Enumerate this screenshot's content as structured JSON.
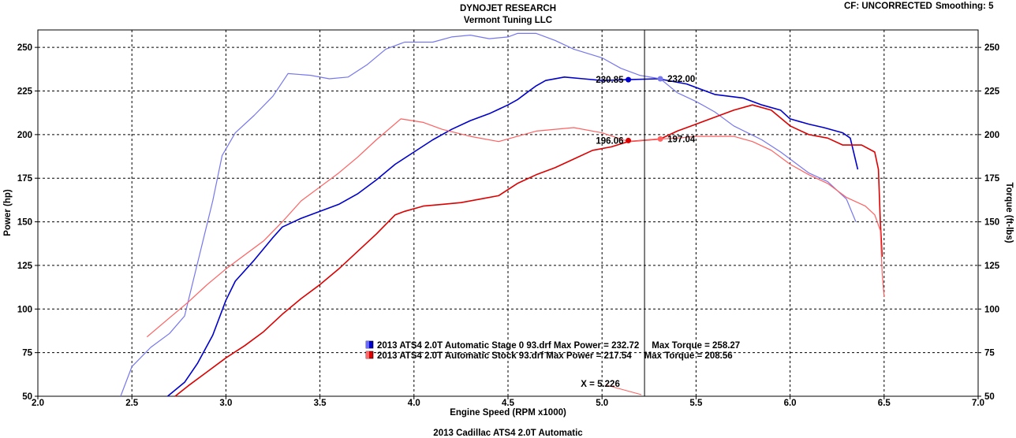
{
  "header": {
    "title": "DYNOJET RESEARCH",
    "subtitle": "Vermont Tuning LLC",
    "cf_label": "CF: UNCORRECTED",
    "smoothing_label": "Smoothing: 5"
  },
  "footer": {
    "caption": "2013 Cadillac ATS4 2.0T Automatic"
  },
  "colors": {
    "stage0_power": "#0000cc",
    "stage0_torque": "#7777ee",
    "stock_power": "#dd0000",
    "stock_torque": "#ff6060",
    "grid": "#000000",
    "cursor": "#000000"
  },
  "chart_data": {
    "type": "line",
    "xlabel": "Engine Speed (RPM x1000)",
    "ylabel_left": "Power (hp)",
    "ylabel_right": "Torque (ft-lbs)",
    "xlim": [
      2.0,
      7.0
    ],
    "ylim_left": [
      50,
      260
    ],
    "ylim_right": [
      50,
      260
    ],
    "x_ticks": [
      "2.0",
      "2.5",
      "3.0",
      "3.5",
      "4.0",
      "4.5",
      "5.0",
      "5.5",
      "6.0",
      "6.5",
      "7.0"
    ],
    "y_ticks": [
      "50",
      "75",
      "100",
      "125",
      "150",
      "175",
      "200",
      "225",
      "250"
    ],
    "grid": true,
    "cursor": {
      "x": 5.226,
      "label": "X = 5.226"
    },
    "legend": [
      {
        "swatch": "blue",
        "text": "2013 ATS4 2.0T Automatic Stage 0 93.drf Max Power = 232.72     Max Torque = 258.27"
      },
      {
        "swatch": "red",
        "text": "2013 ATS4 2.0T Automatic Stock 93.drf Max Power = 217.54     Max Torque = 208.56"
      }
    ],
    "cursor_readouts": [
      {
        "series": "stage0_power",
        "x": 5.14,
        "y": 231.5,
        "label": "230.85",
        "side": "left"
      },
      {
        "series": "stage0_torque",
        "x": 5.31,
        "y": 232.0,
        "label": "232.00",
        "side": "right"
      },
      {
        "series": "stock_power",
        "x": 5.14,
        "y": 196.6,
        "label": "196.06",
        "side": "left"
      },
      {
        "series": "stock_torque",
        "x": 5.31,
        "y": 197.5,
        "label": "197.04",
        "side": "right"
      }
    ],
    "series": [
      {
        "name": "2013 ATS4 2.0T Automatic Stage 0 93.drf Max Power = 232.72",
        "key": "stage0_power",
        "width": 1.6,
        "points": [
          [
            2.69,
            50
          ],
          [
            2.78,
            58
          ],
          [
            2.85,
            69
          ],
          [
            2.93,
            85
          ],
          [
            3.0,
            105
          ],
          [
            3.05,
            116
          ],
          [
            3.15,
            128
          ],
          [
            3.25,
            141
          ],
          [
            3.3,
            147
          ],
          [
            3.4,
            152
          ],
          [
            3.5,
            156
          ],
          [
            3.6,
            160
          ],
          [
            3.7,
            166
          ],
          [
            3.8,
            174
          ],
          [
            3.9,
            183
          ],
          [
            4.0,
            190
          ],
          [
            4.1,
            197
          ],
          [
            4.2,
            203
          ],
          [
            4.3,
            208
          ],
          [
            4.4,
            212
          ],
          [
            4.5,
            217
          ],
          [
            4.55,
            220
          ],
          [
            4.6,
            224
          ],
          [
            4.65,
            228
          ],
          [
            4.7,
            231
          ],
          [
            4.8,
            233
          ],
          [
            4.9,
            232
          ],
          [
            5.0,
            231
          ],
          [
            5.14,
            231.5
          ],
          [
            5.3,
            232
          ],
          [
            5.45,
            229
          ],
          [
            5.6,
            223
          ],
          [
            5.75,
            221
          ],
          [
            5.85,
            217
          ],
          [
            5.95,
            214
          ],
          [
            6.0,
            209
          ],
          [
            6.1,
            206
          ],
          [
            6.18,
            204
          ],
          [
            6.28,
            201
          ],
          [
            6.32,
            198
          ],
          [
            6.36,
            180
          ]
        ]
      },
      {
        "name": "2013 ATS4 2.0T Automatic Stage 0 93.drf Max Torque = 258.27",
        "key": "stage0_torque",
        "width": 1.2,
        "points": [
          [
            2.44,
            50
          ],
          [
            2.5,
            67
          ],
          [
            2.6,
            78
          ],
          [
            2.7,
            86
          ],
          [
            2.78,
            96
          ],
          [
            2.83,
            118
          ],
          [
            2.88,
            140
          ],
          [
            2.93,
            162
          ],
          [
            2.98,
            188
          ],
          [
            3.05,
            201
          ],
          [
            3.15,
            211
          ],
          [
            3.25,
            222
          ],
          [
            3.33,
            235
          ],
          [
            3.45,
            234
          ],
          [
            3.55,
            232
          ],
          [
            3.65,
            233
          ],
          [
            3.75,
            240
          ],
          [
            3.85,
            249
          ],
          [
            3.95,
            253
          ],
          [
            4.1,
            253
          ],
          [
            4.2,
            256
          ],
          [
            4.3,
            257
          ],
          [
            4.4,
            255
          ],
          [
            4.5,
            256
          ],
          [
            4.55,
            258
          ],
          [
            4.65,
            258
          ],
          [
            4.75,
            254
          ],
          [
            4.85,
            249
          ],
          [
            5.0,
            244
          ],
          [
            5.1,
            238
          ],
          [
            5.2,
            234
          ],
          [
            5.31,
            232
          ],
          [
            5.4,
            224
          ],
          [
            5.5,
            219
          ],
          [
            5.6,
            213
          ],
          [
            5.7,
            205
          ],
          [
            5.85,
            197
          ],
          [
            5.95,
            190
          ],
          [
            6.0,
            186
          ],
          [
            6.1,
            178
          ],
          [
            6.2,
            173
          ],
          [
            6.3,
            163
          ],
          [
            6.35,
            150
          ]
        ]
      },
      {
        "name": "2013 ATS4 2.0T Automatic Stock 93.drf Max Power = 217.54",
        "key": "stock_power",
        "width": 1.6,
        "points": [
          [
            2.73,
            50
          ],
          [
            2.8,
            56
          ],
          [
            2.9,
            64
          ],
          [
            3.0,
            72
          ],
          [
            3.1,
            79
          ],
          [
            3.2,
            87
          ],
          [
            3.3,
            97
          ],
          [
            3.4,
            106
          ],
          [
            3.5,
            114
          ],
          [
            3.6,
            123
          ],
          [
            3.7,
            133
          ],
          [
            3.8,
            143
          ],
          [
            3.9,
            154
          ],
          [
            3.95,
            156
          ],
          [
            4.05,
            159
          ],
          [
            4.15,
            160
          ],
          [
            4.25,
            161
          ],
          [
            4.35,
            163
          ],
          [
            4.45,
            165
          ],
          [
            4.55,
            172
          ],
          [
            4.65,
            177
          ],
          [
            4.75,
            181
          ],
          [
            4.85,
            186
          ],
          [
            4.95,
            191
          ],
          [
            5.05,
            193
          ],
          [
            5.14,
            196
          ],
          [
            5.31,
            197.5
          ],
          [
            5.4,
            202
          ],
          [
            5.5,
            206
          ],
          [
            5.6,
            210
          ],
          [
            5.7,
            214
          ],
          [
            5.8,
            217
          ],
          [
            5.9,
            214
          ],
          [
            6.0,
            205
          ],
          [
            6.1,
            200
          ],
          [
            6.2,
            198
          ],
          [
            6.28,
            194
          ],
          [
            6.38,
            194
          ],
          [
            6.45,
            190
          ],
          [
            6.47,
            180
          ],
          [
            6.48,
            150
          ],
          [
            6.49,
            130
          ]
        ]
      },
      {
        "name": "2013 ATS4 2.0T Automatic Stock 93.drf Max Torque = 208.56",
        "key": "stock_torque",
        "width": 1.2,
        "points": [
          [
            2.58,
            84
          ],
          [
            2.7,
            95
          ],
          [
            2.8,
            104
          ],
          [
            2.9,
            114
          ],
          [
            3.0,
            123
          ],
          [
            3.1,
            131
          ],
          [
            3.2,
            139
          ],
          [
            3.3,
            150
          ],
          [
            3.4,
            162
          ],
          [
            3.5,
            170
          ],
          [
            3.6,
            178
          ],
          [
            3.7,
            187
          ],
          [
            3.8,
            197
          ],
          [
            3.93,
            209
          ],
          [
            4.05,
            207
          ],
          [
            4.15,
            203
          ],
          [
            4.3,
            199
          ],
          [
            4.45,
            196
          ],
          [
            4.55,
            199
          ],
          [
            4.65,
            202
          ],
          [
            4.85,
            204
          ],
          [
            5.0,
            201
          ],
          [
            5.14,
            196
          ],
          [
            5.31,
            197.5
          ],
          [
            5.4,
            198
          ],
          [
            5.5,
            199
          ],
          [
            5.6,
            199
          ],
          [
            5.7,
            199
          ],
          [
            5.8,
            196
          ],
          [
            5.9,
            191
          ],
          [
            6.0,
            183
          ],
          [
            6.1,
            177
          ],
          [
            6.2,
            172
          ],
          [
            6.3,
            164
          ],
          [
            6.4,
            159
          ],
          [
            6.45,
            154
          ],
          [
            6.48,
            145
          ],
          [
            6.49,
            120
          ],
          [
            6.5,
            107
          ]
        ]
      }
    ]
  }
}
